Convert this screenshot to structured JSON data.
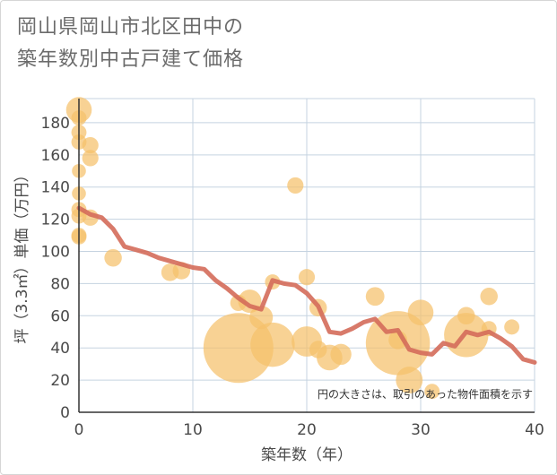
{
  "title_line1": "岡山県岡山市北区田中の",
  "title_line2": "築年数別中古戸建て価格",
  "chart_data": {
    "type": "scatter",
    "title": "岡山県岡山市北区田中の 築年数別中古戸建て価格",
    "xlabel": "築年数（年）",
    "ylabel": "坪（3.3㎡）単価（万円）",
    "xlim": [
      0,
      40
    ],
    "ylim": [
      0,
      195
    ],
    "xticks": [
      0,
      10,
      20,
      30,
      40
    ],
    "yticks": [
      0,
      20,
      40,
      60,
      80,
      100,
      120,
      140,
      160,
      180
    ],
    "grid": true,
    "note": "円の大きさは、取引のあった物件面積を示す",
    "colors": {
      "points": "#f5c06b",
      "line": "#d46b5a",
      "grid": "#c5d3e0"
    },
    "points": [
      {
        "x": 0,
        "y": 188,
        "size": 2.2
      },
      {
        "x": 0,
        "y": 183,
        "size": 1.3
      },
      {
        "x": 0,
        "y": 174,
        "size": 1.3
      },
      {
        "x": 0,
        "y": 168,
        "size": 1.3
      },
      {
        "x": 0,
        "y": 150,
        "size": 1.2
      },
      {
        "x": 0,
        "y": 136,
        "size": 1.2
      },
      {
        "x": 0,
        "y": 126,
        "size": 1.3
      },
      {
        "x": 0,
        "y": 122,
        "size": 1.3
      },
      {
        "x": 0,
        "y": 110,
        "size": 1.3
      },
      {
        "x": 0,
        "y": 109,
        "size": 1.3
      },
      {
        "x": 1,
        "y": 166,
        "size": 1.4
      },
      {
        "x": 1,
        "y": 158,
        "size": 1.4
      },
      {
        "x": 1,
        "y": 121,
        "size": 1.4
      },
      {
        "x": 3,
        "y": 96,
        "size": 1.5
      },
      {
        "x": 8,
        "y": 87,
        "size": 1.5
      },
      {
        "x": 9,
        "y": 88,
        "size": 1.5
      },
      {
        "x": 14,
        "y": 68,
        "size": 1.4
      },
      {
        "x": 14,
        "y": 40,
        "size": 6.0
      },
      {
        "x": 15,
        "y": 69,
        "size": 2.0
      },
      {
        "x": 16,
        "y": 59,
        "size": 2.0
      },
      {
        "x": 17,
        "y": 42,
        "size": 3.8
      },
      {
        "x": 17,
        "y": 81,
        "size": 1.3
      },
      {
        "x": 19,
        "y": 141,
        "size": 1.4
      },
      {
        "x": 20,
        "y": 84,
        "size": 1.4
      },
      {
        "x": 20,
        "y": 44,
        "size": 2.6
      },
      {
        "x": 21,
        "y": 65,
        "size": 1.5
      },
      {
        "x": 21,
        "y": 39,
        "size": 1.5
      },
      {
        "x": 22,
        "y": 34,
        "size": 2.2
      },
      {
        "x": 23,
        "y": 36,
        "size": 1.8
      },
      {
        "x": 26,
        "y": 72,
        "size": 1.6
      },
      {
        "x": 28,
        "y": 43,
        "size": 5.5
      },
      {
        "x": 28,
        "y": 45,
        "size": 1.6
      },
      {
        "x": 29,
        "y": 20,
        "size": 2.3
      },
      {
        "x": 30,
        "y": 62,
        "size": 2.2
      },
      {
        "x": 31,
        "y": 13,
        "size": 1.3
      },
      {
        "x": 34,
        "y": 48,
        "size": 3.8
      },
      {
        "x": 34,
        "y": 60,
        "size": 1.5
      },
      {
        "x": 36,
        "y": 72,
        "size": 1.5
      },
      {
        "x": 36,
        "y": 52,
        "size": 1.3
      },
      {
        "x": 38,
        "y": 53,
        "size": 1.3
      }
    ],
    "trend": {
      "x": [
        0,
        1,
        2,
        3,
        4,
        5,
        6,
        7,
        8,
        9,
        10,
        11,
        12,
        13,
        14,
        15,
        16,
        17,
        18,
        19,
        20,
        21,
        22,
        23,
        24,
        25,
        26,
        27,
        28,
        29,
        30,
        31,
        32,
        33,
        34,
        35,
        36,
        37,
        38,
        39,
        40
      ],
      "y": [
        127,
        123,
        121,
        114,
        103,
        101,
        99,
        96,
        94,
        92,
        90,
        89,
        82,
        77,
        71,
        66,
        64,
        82,
        80,
        79,
        74,
        66,
        50,
        49,
        52,
        56,
        58,
        50,
        51,
        39,
        37,
        36,
        43,
        41,
        50,
        48,
        50,
        46,
        41,
        33,
        31
      ]
    }
  }
}
